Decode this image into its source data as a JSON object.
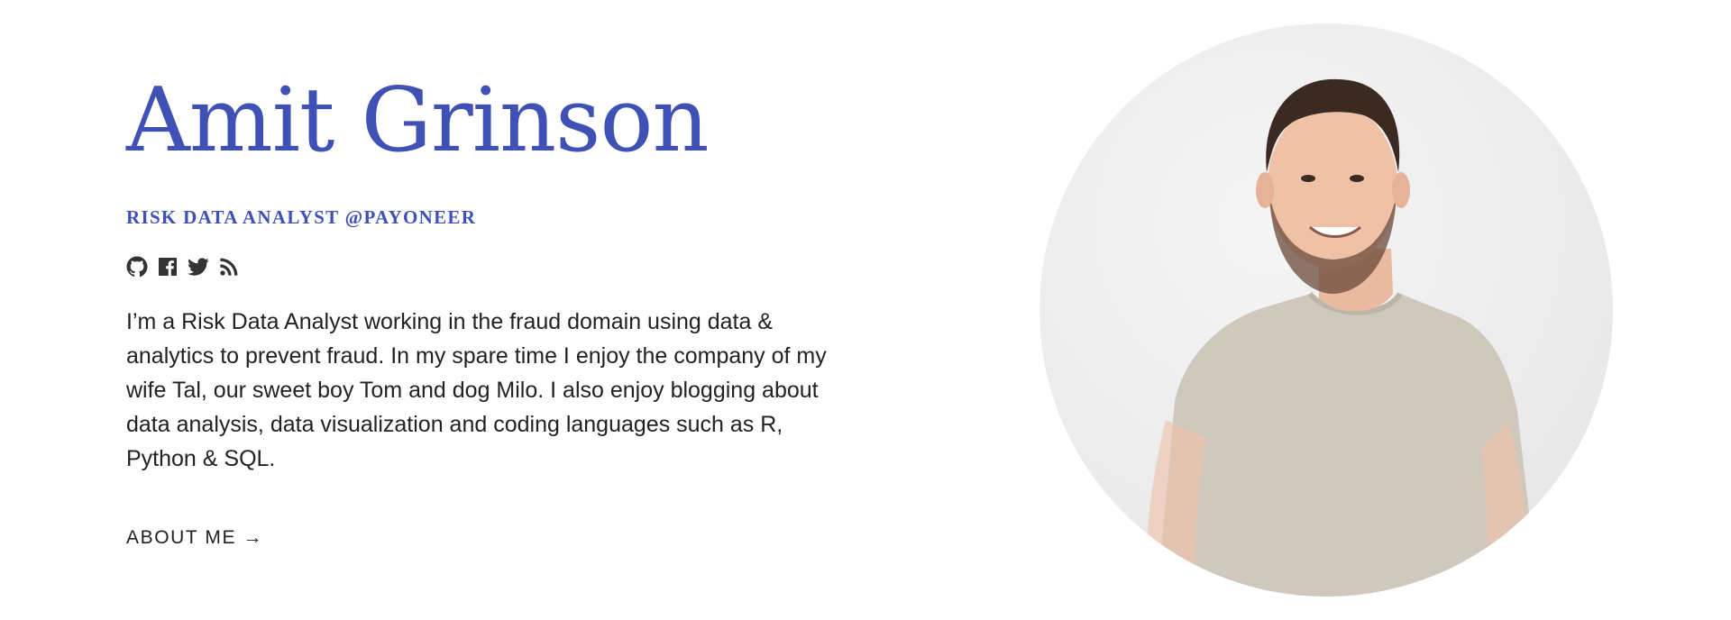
{
  "hero": {
    "name": "Amit Grinson",
    "subtitle": "Risk Data Analyst @Payoneer",
    "social": [
      {
        "icon": "github-icon"
      },
      {
        "icon": "facebook-icon"
      },
      {
        "icon": "twitter-icon"
      },
      {
        "icon": "rss-icon"
      }
    ],
    "bio": "I’m a Risk Data Analyst working in the fraud domain using data & analytics to prevent fraud. In my spare time I enjoy the company of my wife Tal, our sweet boy Tom and dog Milo. I also enjoy blogging about data analysis, data visualization and coding languages such as R, Python & SQL.",
    "about_link": "About me →"
  },
  "colors": {
    "accent": "#3f51b5",
    "text": "#222222",
    "icon": "#333333"
  }
}
